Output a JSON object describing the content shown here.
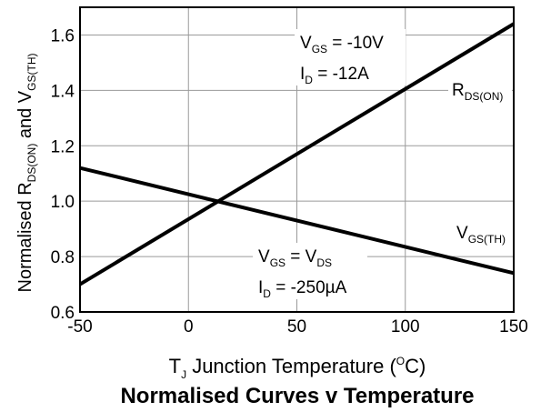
{
  "chart_data": {
    "type": "line",
    "title": "Normalised Curves v Temperature",
    "xlabel": {
      "main": "T",
      "sub": "J",
      "rest": " Junction Temperature (",
      "sup": "O",
      "end": "C)"
    },
    "ylabel": {
      "p1": "Normalised R",
      "s1": "DS(ON)",
      "p2": " and V",
      "s2": "GS(TH)"
    },
    "xlim": [
      -50,
      150
    ],
    "ylim": [
      0.6,
      1.7
    ],
    "xticks": [
      -50,
      0,
      50,
      100,
      150
    ],
    "yticks": [
      0.6,
      0.8,
      1.0,
      1.2,
      1.4,
      1.6
    ],
    "xtick_labels": [
      "-50",
      "0",
      "50",
      "100",
      "150"
    ],
    "ytick_labels": [
      "0.6",
      "0.8",
      "1.0",
      "1.2",
      "1.4",
      "1.6"
    ],
    "grid": true,
    "series": [
      {
        "name": "RDS(ON)",
        "x": [
          -50,
          150
        ],
        "y": [
          0.7,
          1.64
        ]
      },
      {
        "name": "VGS(TH)",
        "x": [
          -50,
          150
        ],
        "y": [
          1.12,
          0.74
        ]
      }
    ],
    "annotations": {
      "rds_label": {
        "main": "R",
        "sub": "DS(ON)"
      },
      "vgs_label": {
        "main": "V",
        "sub": "GS(TH)"
      },
      "cond1_line1": {
        "a": "V",
        "a_sub": "GS",
        "b": " = -10V"
      },
      "cond1_line2": {
        "a": "I",
        "a_sub": "D",
        "b": " = -12A"
      },
      "cond2_line1": {
        "a": "V",
        "a_sub": "GS",
        "b": " = V",
        "b_sub": "DS"
      },
      "cond2_line2": {
        "a": "I",
        "a_sub": "D",
        "b": " = -250µA"
      }
    }
  }
}
